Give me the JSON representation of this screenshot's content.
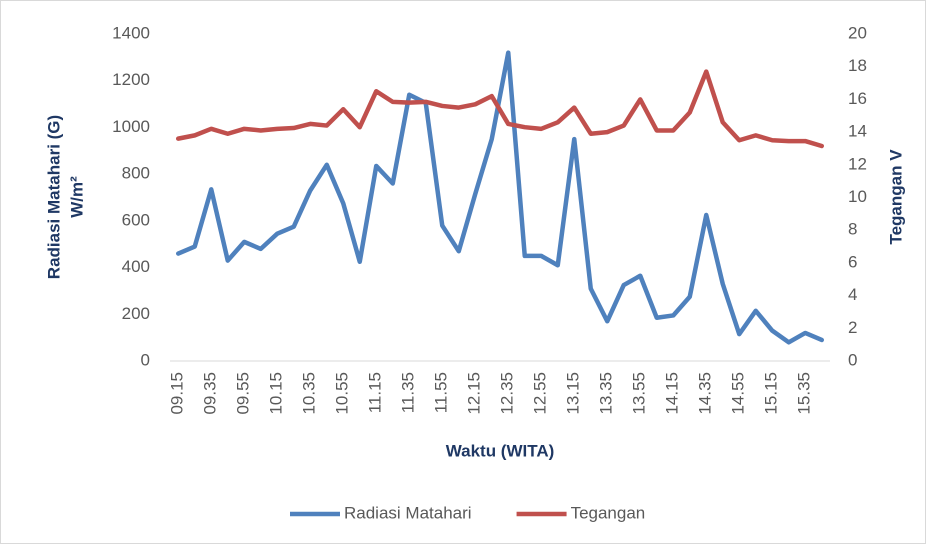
{
  "chart_data": {
    "type": "line",
    "categories": [
      "09.15",
      null,
      "09.35",
      null,
      "09.55",
      null,
      "10.15",
      null,
      "10.35",
      null,
      "10.55",
      null,
      "11.15",
      null,
      "11.35",
      null,
      "11.55",
      null,
      "12.15",
      null,
      "12.35",
      null,
      "12.55",
      null,
      "13.15",
      null,
      "13.35",
      null,
      "13.55",
      null,
      "14.15",
      null,
      "14.35",
      null,
      "14.55",
      null,
      "15.15",
      null,
      "15.35",
      null
    ],
    "series": [
      {
        "name": "Radiasi Matahari",
        "color": "#4f81bd",
        "values": [
          460,
          490,
          735,
          430,
          510,
          480,
          545,
          575,
          730,
          840,
          675,
          425,
          835,
          760,
          1140,
          1105,
          580,
          470,
          715,
          950,
          1320,
          450,
          450,
          410,
          950,
          310,
          170,
          325,
          365,
          185,
          195,
          275,
          625,
          330,
          115,
          215,
          130,
          80,
          120,
          90
        ]
      },
      {
        "name": "Tegangan",
        "color": "#c0504d",
        "axis": "y2",
        "values": [
          13.6,
          13.8,
          14.2,
          13.9,
          14.2,
          14.1,
          14.2,
          14.25,
          14.5,
          14.4,
          15.4,
          14.3,
          16.5,
          15.85,
          15.8,
          15.85,
          15.6,
          15.5,
          15.7,
          16.2,
          14.5,
          14.3,
          14.2,
          14.6,
          15.5,
          13.9,
          14.0,
          14.4,
          16.0,
          14.1,
          14.1,
          15.2,
          17.7,
          14.6,
          13.5,
          13.8,
          13.5,
          13.45,
          13.45,
          13.15
        ]
      }
    ],
    "x_label": "Waktu (WITA)",
    "y_label": [
      "Radiasi Matahari (G)",
      "W/m²"
    ],
    "y2_label": "Tegangan V",
    "ylim": [
      0,
      1400
    ],
    "yticks": [
      0,
      200,
      400,
      600,
      800,
      1000,
      1200,
      1400
    ],
    "y2lim": [
      0,
      20
    ],
    "y2ticks": [
      0,
      2,
      4,
      6,
      8,
      10,
      12,
      14,
      16,
      18,
      20
    ],
    "grid": false,
    "legend": "bottom"
  }
}
